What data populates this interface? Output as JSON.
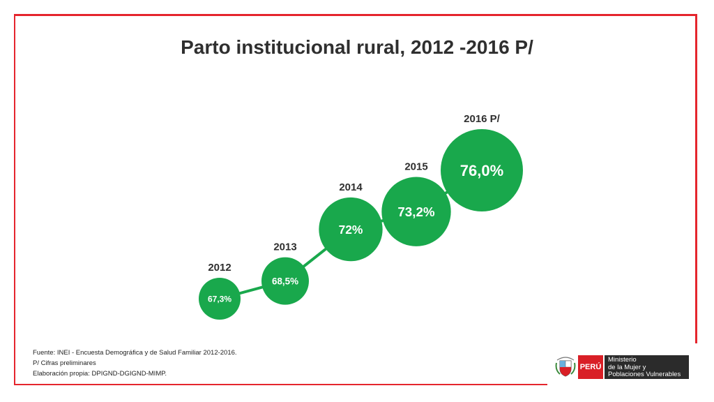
{
  "chart_data": {
    "type": "bubble",
    "title": "Parto institucional rural, 2012 -2016 P/",
    "categories": [
      "2012",
      "2013",
      "2014",
      "2015",
      "2016 P/"
    ],
    "values": [
      67.3,
      68.5,
      72.0,
      73.2,
      76.0
    ],
    "value_labels": [
      "67,3%",
      "68,5%",
      "72%",
      "73,2%",
      "76,0%"
    ],
    "unit": "%",
    "colors": {
      "bubble": "#19a84c",
      "connector": "#19a84c",
      "frame": "#e5252d"
    }
  },
  "footnotes": {
    "source": "Fuente: INEI - Encuesta Demográfica y de Salud Familiar 2012-2016.",
    "preliminary": "P/ Cifras preliminares",
    "elaboration": "Elaboración propia: DPIGND-DGIGND-MIMP."
  },
  "logo": {
    "country": "PERÚ",
    "ministry_line1": "Ministerio",
    "ministry_line2": "de la Mujer y",
    "ministry_line3": "Poblaciones Vulnerables",
    "icon": "coat-of-arms-icon"
  }
}
